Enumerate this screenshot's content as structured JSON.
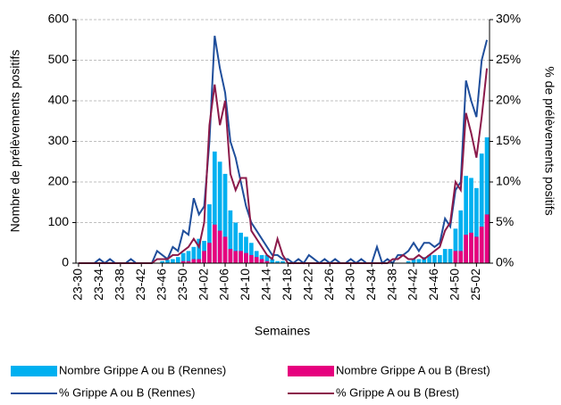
{
  "chart_data": {
    "type": "bar-line",
    "x_label": "Semaines",
    "y_label": "Nombre de prélèvements positifs",
    "y2_label": "% de prélèvements positifs",
    "categories": [
      "23-30",
      null,
      null,
      null,
      "23-34",
      null,
      null,
      null,
      "23-38",
      null,
      null,
      null,
      "23-42",
      null,
      null,
      null,
      "23-46",
      null,
      null,
      null,
      "23-50",
      null,
      null,
      null,
      "24-02",
      null,
      null,
      null,
      "24-06",
      null,
      null,
      null,
      "24-10",
      null,
      null,
      null,
      "24-14",
      null,
      null,
      null,
      "24-18",
      null,
      null,
      null,
      "24-22",
      null,
      null,
      null,
      "24-26",
      null,
      null,
      null,
      "24-30",
      null,
      null,
      null,
      "24-34",
      null,
      null,
      null,
      "24-38",
      null,
      null,
      null,
      "24-42",
      null,
      null,
      null,
      "24-46",
      null,
      null,
      null,
      "24-50",
      null,
      null,
      null,
      "25-02",
      null,
      null
    ],
    "ylim": [
      0,
      600
    ],
    "yticks": [
      0,
      100,
      200,
      300,
      400,
      500,
      600
    ],
    "y2lim": [
      0,
      30
    ],
    "y2ticks": [
      {
        "value": 0,
        "label": "0%"
      },
      {
        "value": 5,
        "label": "5%"
      },
      {
        "value": 10,
        "label": "10%"
      },
      {
        "value": 15,
        "label": "15%"
      },
      {
        "value": 20,
        "label": "20%"
      },
      {
        "value": 25,
        "label": "25%"
      },
      {
        "value": 30,
        "label": "30%"
      }
    ],
    "grid": true,
    "legend": "bottom",
    "series": [
      {
        "name": "Nombre Grippe A ou B (Rennes)",
        "kind": "bar",
        "color": "#00b0f0",
        "values": [
          0,
          0,
          0,
          0,
          0,
          0,
          0,
          0,
          0,
          0,
          0,
          0,
          0,
          0,
          0,
          0,
          5,
          8,
          10,
          15,
          25,
          30,
          40,
          60,
          55,
          145,
          275,
          250,
          220,
          130,
          100,
          75,
          65,
          50,
          30,
          20,
          20,
          10,
          5,
          5,
          0,
          0,
          0,
          0,
          0,
          0,
          0,
          0,
          0,
          0,
          0,
          0,
          0,
          0,
          0,
          0,
          0,
          0,
          0,
          0,
          0,
          0,
          0,
          5,
          10,
          10,
          15,
          20,
          20,
          20,
          35,
          35,
          85,
          130,
          215,
          210,
          185,
          270,
          310
        ]
      },
      {
        "name": "Nombre Grippe A ou B (Brest)",
        "kind": "bar",
        "color": "#e6007e",
        "values": [
          0,
          0,
          0,
          0,
          0,
          0,
          0,
          0,
          0,
          0,
          0,
          0,
          0,
          0,
          0,
          0,
          0,
          0,
          0,
          0,
          5,
          5,
          10,
          10,
          30,
          50,
          95,
          80,
          65,
          35,
          30,
          30,
          25,
          20,
          15,
          10,
          5,
          0,
          0,
          0,
          0,
          0,
          0,
          0,
          0,
          0,
          0,
          0,
          0,
          0,
          0,
          0,
          0,
          0,
          0,
          0,
          0,
          0,
          0,
          0,
          0,
          0,
          0,
          0,
          0,
          0,
          0,
          0,
          0,
          0,
          0,
          0,
          30,
          30,
          70,
          75,
          65,
          90,
          120
        ]
      },
      {
        "name": "% Grippe A ou B (Rennes)",
        "kind": "line",
        "axis": "y2",
        "color": "#1f4e9b",
        "values": [
          0,
          0,
          0,
          0,
          0.5,
          0,
          0.5,
          0,
          0,
          0,
          0.5,
          0,
          0,
          0,
          0,
          1.5,
          1,
          0.5,
          2,
          1.5,
          4,
          3.5,
          8,
          6,
          7,
          15,
          28,
          24,
          21,
          15,
          13,
          10,
          7,
          5,
          4,
          3,
          2,
          1,
          1,
          0.5,
          0.5,
          0,
          0.5,
          0,
          1,
          0.5,
          0,
          0.5,
          0,
          0.5,
          0,
          0,
          0.5,
          0,
          0.5,
          0,
          0,
          2,
          0,
          0.5,
          0,
          1,
          1,
          1.5,
          2.5,
          1.5,
          2.5,
          2.5,
          2,
          2.5,
          5.5,
          4.5,
          9,
          10,
          22.5,
          20,
          18,
          25,
          27.5
        ]
      },
      {
        "name": "% Grippe A ou B (Brest)",
        "kind": "line",
        "axis": "y2",
        "color": "#8b1a4a",
        "values": [
          0,
          0,
          0,
          0,
          0,
          0,
          0,
          0,
          0,
          0,
          0,
          0,
          0,
          0,
          0,
          0.5,
          0.5,
          0.5,
          1,
          1,
          1.5,
          2,
          3,
          2,
          5,
          17,
          22,
          17,
          20,
          11,
          9,
          10.5,
          10.5,
          4,
          3,
          2,
          1,
          0.5,
          3,
          1,
          0,
          0,
          0,
          0,
          0,
          0,
          0,
          0,
          0,
          0,
          0,
          0,
          0,
          0,
          0,
          0,
          0,
          0,
          0,
          0,
          0.5,
          0.5,
          1,
          0.5,
          0.5,
          1,
          0.5,
          1,
          1.5,
          2,
          4,
          5,
          10,
          9,
          18.5,
          16,
          13,
          18,
          24
        ]
      }
    ]
  }
}
